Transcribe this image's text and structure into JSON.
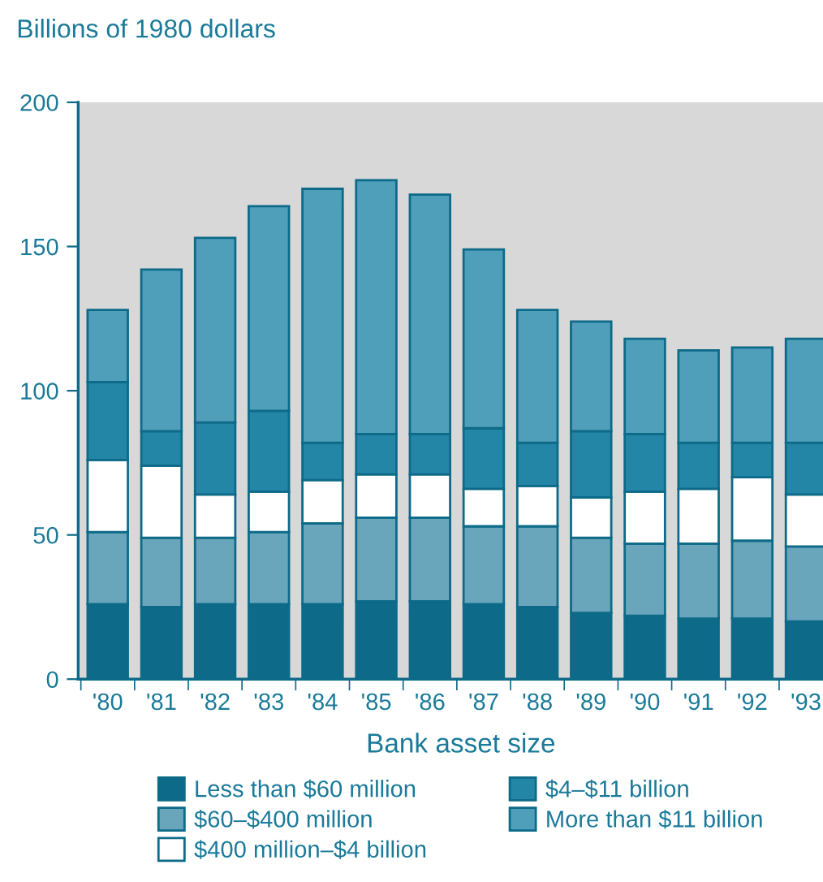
{
  "chart_data": {
    "type": "bar",
    "stacked": true,
    "ylabel": "Billions of 1980 dollars",
    "xlabel": "Bank asset size",
    "categories": [
      "'80",
      "'81",
      "'82",
      "'83",
      "'84",
      "'85",
      "'86",
      "'87",
      "'88",
      "'89",
      "'90",
      "'91",
      "'92",
      "'93"
    ],
    "series": [
      {
        "name": "Less than $60 million",
        "color": "#0d6a88",
        "values": [
          26,
          25,
          26,
          26,
          26,
          27,
          27,
          26,
          25,
          23,
          22,
          21,
          21,
          20
        ]
      },
      {
        "name": "$60–$400 million",
        "color": "#6aa6bb",
        "values": [
          25,
          24,
          23,
          25,
          28,
          29,
          29,
          27,
          28,
          26,
          25,
          26,
          27,
          26
        ]
      },
      {
        "name": "$400 million–$4 billion",
        "color": "#ffffff",
        "values": [
          25,
          25,
          15,
          14,
          15,
          15,
          15,
          13,
          14,
          14,
          18,
          19,
          22,
          18
        ]
      },
      {
        "name": "$4–$11 billion",
        "color": "#2386a6",
        "values": [
          27,
          12,
          25,
          28,
          13,
          14,
          14,
          21,
          15,
          23,
          20,
          16,
          12,
          18
        ]
      },
      {
        "name": "More than $11 billion",
        "color": "#4f9fbb",
        "values": [
          25,
          56,
          64,
          71,
          88,
          88,
          83,
          62,
          46,
          38,
          33,
          32,
          33,
          36
        ]
      }
    ],
    "ylim": [
      0,
      200
    ],
    "yticks": [
      0,
      50,
      100,
      150,
      200
    ],
    "legend": "bottom"
  }
}
